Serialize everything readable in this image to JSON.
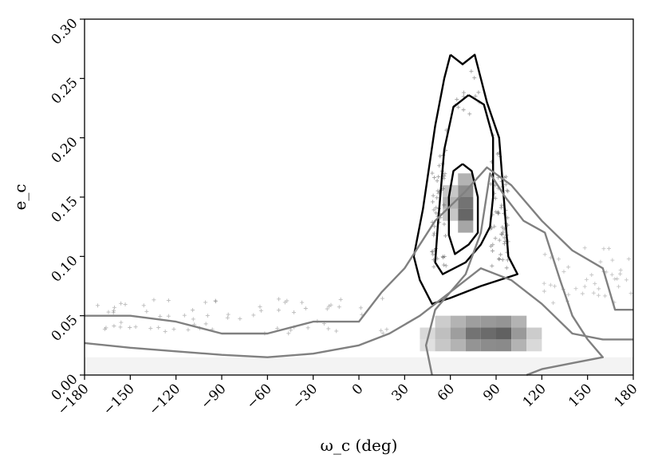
{
  "chart_data": {
    "type": "heatmap",
    "title": "",
    "xlabel": "ω_c (deg)",
    "ylabel": "e_c",
    "xlim": [
      -180,
      180
    ],
    "ylim": [
      0.0,
      0.3
    ],
    "x_ticks": [
      "−180",
      "−150",
      "−120",
      "−90",
      "−60",
      "−30",
      "0",
      "30",
      "60",
      "90",
      "120",
      "150",
      "180"
    ],
    "y_ticks": [
      "0.00",
      "0.05",
      "0.10",
      "0.15",
      "0.20",
      "0.25",
      "0.30"
    ],
    "grid": false,
    "legend": "none",
    "colors": {
      "scatter": "#555555",
      "contour_dark": "#000000",
      "contour_gray": "#808080",
      "frame": "#000000"
    },
    "heatmap_cells": [
      {
        "x": 45,
        "y": 0.035,
        "w": 10,
        "h": 0.01,
        "v": 0.15
      },
      {
        "x": 45,
        "y": 0.025,
        "w": 10,
        "h": 0.01,
        "v": 0.12
      },
      {
        "x": 55,
        "y": 0.045,
        "w": 10,
        "h": 0.01,
        "v": 0.2
      },
      {
        "x": 55,
        "y": 0.035,
        "w": 10,
        "h": 0.01,
        "v": 0.25
      },
      {
        "x": 55,
        "y": 0.025,
        "w": 10,
        "h": 0.01,
        "v": 0.22
      },
      {
        "x": 65,
        "y": 0.045,
        "w": 10,
        "h": 0.01,
        "v": 0.3
      },
      {
        "x": 65,
        "y": 0.035,
        "w": 10,
        "h": 0.01,
        "v": 0.38
      },
      {
        "x": 65,
        "y": 0.025,
        "w": 10,
        "h": 0.01,
        "v": 0.3
      },
      {
        "x": 75,
        "y": 0.045,
        "w": 10,
        "h": 0.01,
        "v": 0.38
      },
      {
        "x": 75,
        "y": 0.035,
        "w": 10,
        "h": 0.01,
        "v": 0.55
      },
      {
        "x": 75,
        "y": 0.025,
        "w": 10,
        "h": 0.01,
        "v": 0.42
      },
      {
        "x": 85,
        "y": 0.045,
        "w": 10,
        "h": 0.01,
        "v": 0.4
      },
      {
        "x": 85,
        "y": 0.035,
        "w": 10,
        "h": 0.01,
        "v": 0.58
      },
      {
        "x": 85,
        "y": 0.025,
        "w": 10,
        "h": 0.01,
        "v": 0.45
      },
      {
        "x": 95,
        "y": 0.045,
        "w": 10,
        "h": 0.01,
        "v": 0.42
      },
      {
        "x": 95,
        "y": 0.035,
        "w": 10,
        "h": 0.01,
        "v": 0.62
      },
      {
        "x": 95,
        "y": 0.025,
        "w": 10,
        "h": 0.01,
        "v": 0.46
      },
      {
        "x": 105,
        "y": 0.045,
        "w": 10,
        "h": 0.01,
        "v": 0.3
      },
      {
        "x": 105,
        "y": 0.035,
        "w": 10,
        "h": 0.01,
        "v": 0.4
      },
      {
        "x": 105,
        "y": 0.025,
        "w": 10,
        "h": 0.01,
        "v": 0.3
      },
      {
        "x": 115,
        "y": 0.035,
        "w": 10,
        "h": 0.01,
        "v": 0.2
      },
      {
        "x": 115,
        "y": 0.025,
        "w": 10,
        "h": 0.01,
        "v": 0.15
      },
      {
        "x": 70,
        "y": 0.145,
        "w": 10,
        "h": 0.01,
        "v": 0.55
      },
      {
        "x": 70,
        "y": 0.135,
        "w": 10,
        "h": 0.01,
        "v": 0.6
      },
      {
        "x": 70,
        "y": 0.155,
        "w": 10,
        "h": 0.01,
        "v": 0.45
      },
      {
        "x": 70,
        "y": 0.165,
        "w": 10,
        "h": 0.01,
        "v": 0.3
      },
      {
        "x": 70,
        "y": 0.125,
        "w": 10,
        "h": 0.01,
        "v": 0.35
      },
      {
        "x": 60,
        "y": 0.145,
        "w": 10,
        "h": 0.01,
        "v": 0.3
      },
      {
        "x": 60,
        "y": 0.155,
        "w": 10,
        "h": 0.01,
        "v": 0.22
      },
      {
        "x": 60,
        "y": 0.135,
        "w": 10,
        "h": 0.01,
        "v": 0.22
      }
    ],
    "contours": [
      {
        "level": "dark-inner",
        "color": "#000000",
        "points": [
          [
            68,
            0.178
          ],
          [
            74,
            0.172
          ],
          [
            78,
            0.15
          ],
          [
            78,
            0.12
          ],
          [
            72,
            0.11
          ],
          [
            63,
            0.102
          ],
          [
            59,
            0.118
          ],
          [
            59,
            0.15
          ],
          [
            62,
            0.172
          ],
          [
            68,
            0.178
          ]
        ]
      },
      {
        "level": "dark-middle",
        "color": "#000000",
        "points": [
          [
            72,
            0.236
          ],
          [
            82,
            0.228
          ],
          [
            88,
            0.2
          ],
          [
            88,
            0.15
          ],
          [
            86,
            0.125
          ],
          [
            80,
            0.11
          ],
          [
            70,
            0.095
          ],
          [
            55,
            0.085
          ],
          [
            50,
            0.095
          ],
          [
            52,
            0.13
          ],
          [
            56,
            0.19
          ],
          [
            62,
            0.226
          ],
          [
            72,
            0.236
          ]
        ]
      },
      {
        "level": "dark-outer",
        "color": "#000000",
        "points": [
          [
            60,
            0.27
          ],
          [
            68,
            0.262
          ],
          [
            76,
            0.27
          ],
          [
            84,
            0.23
          ],
          [
            92,
            0.2
          ],
          [
            95,
            0.15
          ],
          [
            98,
            0.1
          ],
          [
            104,
            0.085
          ],
          [
            80,
            0.075
          ],
          [
            60,
            0.065
          ],
          [
            48,
            0.06
          ],
          [
            40,
            0.08
          ],
          [
            36,
            0.1
          ],
          [
            42,
            0.14
          ],
          [
            50,
            0.21
          ],
          [
            56,
            0.25
          ],
          [
            60,
            0.27
          ]
        ]
      },
      {
        "level": "gray-inner",
        "color": "#808080",
        "points": [
          [
            48,
            0.0
          ],
          [
            44,
            0.025
          ],
          [
            50,
            0.055
          ],
          [
            70,
            0.085
          ],
          [
            80,
            0.12
          ],
          [
            86,
            0.17
          ],
          [
            96,
            0.15
          ],
          [
            108,
            0.13
          ],
          [
            122,
            0.12
          ],
          [
            132,
            0.08
          ],
          [
            140,
            0.05
          ],
          [
            150,
            0.03
          ],
          [
            160,
            0.015
          ],
          [
            140,
            0.01
          ],
          [
            120,
            0.005
          ],
          [
            110,
            0.0
          ]
        ]
      },
      {
        "level": "gray-outer",
        "color": "#808080",
        "points": [
          [
            -180,
            0.05
          ],
          [
            -150,
            0.05
          ],
          [
            -120,
            0.045
          ],
          [
            -90,
            0.035
          ],
          [
            -60,
            0.035
          ],
          [
            -30,
            0.045
          ],
          [
            0,
            0.045
          ],
          [
            15,
            0.07
          ],
          [
            30,
            0.09
          ],
          [
            50,
            0.13
          ],
          [
            70,
            0.155
          ],
          [
            84,
            0.175
          ],
          [
            100,
            0.16
          ],
          [
            120,
            0.13
          ],
          [
            140,
            0.105
          ],
          [
            160,
            0.09
          ],
          [
            168,
            0.055
          ],
          [
            180,
            0.055
          ]
        ]
      },
      {
        "level": "gray-low",
        "color": "#808080",
        "points": [
          [
            -180,
            0.027
          ],
          [
            -150,
            0.023
          ],
          [
            -120,
            0.02
          ],
          [
            -90,
            0.017
          ],
          [
            -60,
            0.015
          ],
          [
            -30,
            0.018
          ],
          [
            0,
            0.025
          ],
          [
            20,
            0.035
          ],
          [
            40,
            0.05
          ],
          [
            60,
            0.07
          ],
          [
            80,
            0.09
          ],
          [
            100,
            0.08
          ],
          [
            120,
            0.06
          ],
          [
            140,
            0.035
          ],
          [
            160,
            0.03
          ],
          [
            180,
            0.03
          ]
        ]
      }
    ]
  }
}
